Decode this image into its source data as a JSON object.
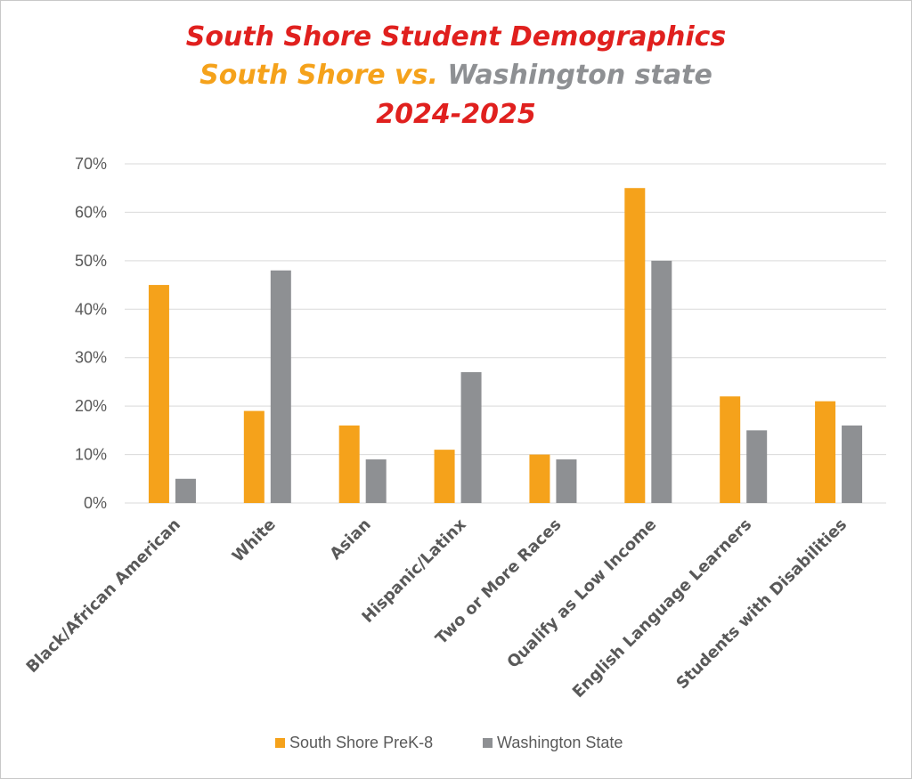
{
  "chart_data": {
    "type": "bar",
    "title_line1": "South Shore Student Demographics",
    "title_line2_part1": "South Shore vs.",
    "title_line2_part2": "Washington state",
    "title_line3": "2024-2025",
    "categories": [
      "Black/African American",
      "White",
      "Asian",
      "Hispanic/Latinx",
      "Two or More Races",
      "Qualify as Low Income",
      "English Language Learners",
      "Students with Disabilities"
    ],
    "series": [
      {
        "name": "South Shore PreK-8",
        "color": "#F5A21B",
        "values": [
          45,
          19,
          16,
          11,
          10,
          65,
          22,
          21
        ]
      },
      {
        "name": "Washington State",
        "color": "#8E9093",
        "values": [
          5,
          48,
          9,
          27,
          9,
          50,
          15,
          16
        ]
      }
    ],
    "ylim": [
      0,
      70
    ],
    "yticks": [
      "0%",
      "10%",
      "20%",
      "30%",
      "40%",
      "50%",
      "60%",
      "70%"
    ],
    "grid": true,
    "legend_position": "bottom",
    "colors": {
      "title_red": "#E0201E",
      "title_orange": "#F5A21B",
      "title_gray": "#8E9093"
    }
  }
}
